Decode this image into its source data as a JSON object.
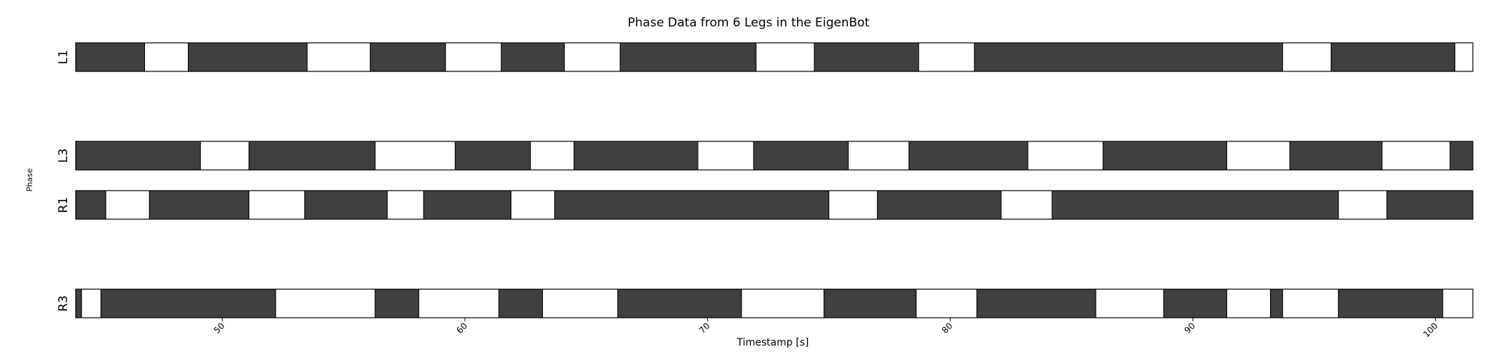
{
  "chart_data": {
    "type": "phase-strip",
    "title": "Phase Data from 6 Legs in the EigenBot",
    "xlabel": "Timestamp [s]",
    "ylabel": "Phase",
    "xlim": [
      43.96,
      101.54
    ],
    "xticks": [
      50,
      60,
      70,
      80,
      90,
      100
    ],
    "colors": {
      "stance": "#404040",
      "swing": "#ffffff",
      "edge": "#000000"
    },
    "legs": [
      {
        "name": "L1",
        "row": 0,
        "segments": [
          [
            43.96,
            46.8,
            "stance"
          ],
          [
            46.8,
            48.6,
            "swing"
          ],
          [
            48.6,
            53.5,
            "stance"
          ],
          [
            53.5,
            56.1,
            "swing"
          ],
          [
            56.1,
            59.2,
            "stance"
          ],
          [
            59.2,
            61.5,
            "swing"
          ],
          [
            61.5,
            64.1,
            "stance"
          ],
          [
            64.1,
            66.4,
            "swing"
          ],
          [
            66.4,
            72.0,
            "stance"
          ],
          [
            72.0,
            74.4,
            "swing"
          ],
          [
            74.4,
            78.7,
            "stance"
          ],
          [
            78.7,
            81.0,
            "swing"
          ],
          [
            81.0,
            93.7,
            "stance"
          ],
          [
            93.7,
            95.7,
            "swing"
          ],
          [
            95.7,
            100.8,
            "stance"
          ],
          [
            100.8,
            101.54,
            "swing"
          ]
        ]
      },
      {
        "name": "L3",
        "row": 2,
        "segments": [
          [
            43.96,
            49.1,
            "stance"
          ],
          [
            49.1,
            51.1,
            "swing"
          ],
          [
            51.1,
            56.3,
            "stance"
          ],
          [
            56.3,
            59.6,
            "swing"
          ],
          [
            59.6,
            62.7,
            "stance"
          ],
          [
            62.7,
            64.5,
            "swing"
          ],
          [
            64.5,
            69.6,
            "stance"
          ],
          [
            69.6,
            71.9,
            "swing"
          ],
          [
            71.9,
            75.8,
            "stance"
          ],
          [
            75.8,
            78.3,
            "swing"
          ],
          [
            78.3,
            83.2,
            "stance"
          ],
          [
            83.2,
            86.3,
            "swing"
          ],
          [
            86.3,
            91.4,
            "stance"
          ],
          [
            91.4,
            94.0,
            "swing"
          ],
          [
            94.0,
            97.8,
            "stance"
          ],
          [
            97.8,
            100.6,
            "swing"
          ],
          [
            100.6,
            101.54,
            "stance"
          ]
        ]
      },
      {
        "name": "R1",
        "row": 3,
        "segments": [
          [
            43.96,
            45.2,
            "stance"
          ],
          [
            45.2,
            47.0,
            "swing"
          ],
          [
            47.0,
            51.1,
            "stance"
          ],
          [
            51.1,
            53.4,
            "swing"
          ],
          [
            53.4,
            56.8,
            "stance"
          ],
          [
            56.8,
            58.3,
            "swing"
          ],
          [
            58.3,
            61.9,
            "stance"
          ],
          [
            61.9,
            63.7,
            "swing"
          ],
          [
            63.7,
            75.0,
            "stance"
          ],
          [
            75.0,
            77.0,
            "swing"
          ],
          [
            77.0,
            82.1,
            "stance"
          ],
          [
            82.1,
            84.2,
            "swing"
          ],
          [
            84.2,
            96.0,
            "stance"
          ],
          [
            96.0,
            98.0,
            "swing"
          ],
          [
            98.0,
            101.54,
            "stance"
          ]
        ]
      },
      {
        "name": "R3",
        "row": 5,
        "segments": [
          [
            43.96,
            44.2,
            "stance"
          ],
          [
            44.2,
            45.0,
            "swing"
          ],
          [
            45.0,
            52.2,
            "stance"
          ],
          [
            52.2,
            56.3,
            "swing"
          ],
          [
            56.3,
            58.1,
            "stance"
          ],
          [
            58.1,
            61.4,
            "swing"
          ],
          [
            61.4,
            63.2,
            "stance"
          ],
          [
            63.2,
            66.3,
            "swing"
          ],
          [
            66.3,
            71.4,
            "stance"
          ],
          [
            71.4,
            74.8,
            "swing"
          ],
          [
            74.8,
            78.6,
            "stance"
          ],
          [
            78.6,
            81.1,
            "swing"
          ],
          [
            81.1,
            86.0,
            "stance"
          ],
          [
            86.0,
            88.8,
            "swing"
          ],
          [
            88.8,
            91.4,
            "stance"
          ],
          [
            91.4,
            93.2,
            "swing"
          ],
          [
            93.2,
            93.7,
            "stance"
          ],
          [
            93.7,
            96.0,
            "swing"
          ],
          [
            96.0,
            100.3,
            "stance"
          ],
          [
            100.3,
            101.54,
            "swing"
          ]
        ]
      }
    ]
  }
}
